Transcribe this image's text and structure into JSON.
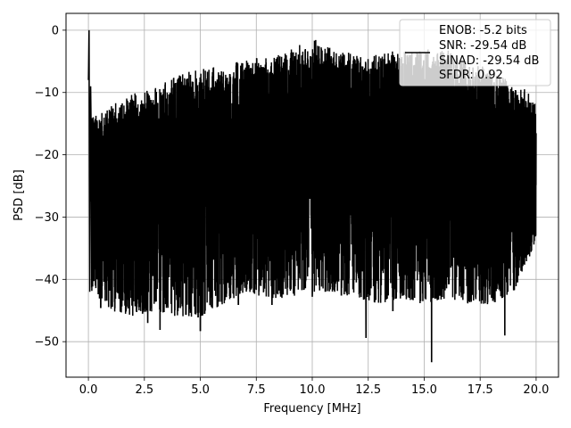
{
  "chart_data": {
    "type": "line",
    "title": "",
    "xlabel": "Frequency [MHz]",
    "ylabel": "PSD [dB]",
    "xlim": [
      -1.0,
      21.0
    ],
    "ylim": [
      -55.7,
      2.7
    ],
    "x_ticks": [
      0.0,
      2.5,
      5.0,
      7.5,
      10.0,
      12.5,
      15.0,
      17.5,
      20.0
    ],
    "x_tick_labels": [
      "0.0",
      "2.5",
      "5.0",
      "7.5",
      "10.0",
      "12.5",
      "15.0",
      "17.5",
      "20.0"
    ],
    "y_ticks": [
      0,
      -10,
      -20,
      -30,
      -40,
      -50
    ],
    "y_tick_labels": [
      "0",
      "−10",
      "−20",
      "−30",
      "−40",
      "−50"
    ],
    "grid": true,
    "legend_position": "top-right",
    "series": [
      {
        "color": "#000000",
        "x_range": [
          0.0,
          20.0
        ],
        "peak": {
          "x": 0.03,
          "y": 0.0
        },
        "upper_envelope": [
          [
            0.2,
            -13
          ],
          [
            1.0,
            -12
          ],
          [
            2.0,
            -10
          ],
          [
            3.0,
            -9
          ],
          [
            4.0,
            -7
          ],
          [
            5.0,
            -6
          ],
          [
            6.0,
            -5.5
          ],
          [
            7.0,
            -4.5
          ],
          [
            8.0,
            -4
          ],
          [
            9.0,
            -3
          ],
          [
            10.0,
            -1
          ],
          [
            11.0,
            -3
          ],
          [
            12.0,
            -3.5
          ],
          [
            13.0,
            -3.5
          ],
          [
            14.0,
            -3
          ],
          [
            15.0,
            -3
          ],
          [
            16.0,
            -3
          ],
          [
            17.0,
            -5
          ],
          [
            18.0,
            -6
          ],
          [
            19.0,
            -8
          ],
          [
            20.0,
            -11
          ]
        ],
        "lower_envelope": [
          [
            0.2,
            -42
          ],
          [
            1.0,
            -45
          ],
          [
            2.0,
            -46
          ],
          [
            3.0,
            -45
          ],
          [
            4.0,
            -46
          ],
          [
            5.0,
            -46
          ],
          [
            6.0,
            -44
          ],
          [
            7.0,
            -42
          ],
          [
            8.0,
            -43
          ],
          [
            9.0,
            -43
          ],
          [
            10.0,
            -42
          ],
          [
            11.0,
            -42
          ],
          [
            12.0,
            -43
          ],
          [
            13.0,
            -44
          ],
          [
            14.0,
            -43
          ],
          [
            15.0,
            -44
          ],
          [
            16.0,
            -43
          ],
          [
            17.0,
            -44
          ],
          [
            18.0,
            -44
          ],
          [
            19.0,
            -42
          ],
          [
            20.0,
            -34
          ]
        ],
        "dips": [
          [
            0.55,
            -44.5
          ],
          [
            2.2,
            -41.5
          ],
          [
            2.65,
            -46.9
          ],
          [
            3.2,
            -48.0
          ],
          [
            4.0,
            -45.0
          ],
          [
            4.9,
            -46.0
          ],
          [
            5.0,
            -48.2
          ],
          [
            6.7,
            -44.0
          ],
          [
            8.2,
            -44.0
          ],
          [
            10.0,
            -42.7
          ],
          [
            11.3,
            -42.5
          ],
          [
            12.4,
            -49.3
          ],
          [
            13.6,
            -45.0
          ],
          [
            15.33,
            -53.2
          ],
          [
            17.1,
            -43.5
          ],
          [
            18.6,
            -48.9
          ]
        ]
      }
    ],
    "legend": {
      "entries": [
        "ENOB: -5.2 bits",
        "SNR: -29.54 dB",
        "SINAD: -29.54 dB",
        "SFDR: 0.92"
      ]
    }
  }
}
